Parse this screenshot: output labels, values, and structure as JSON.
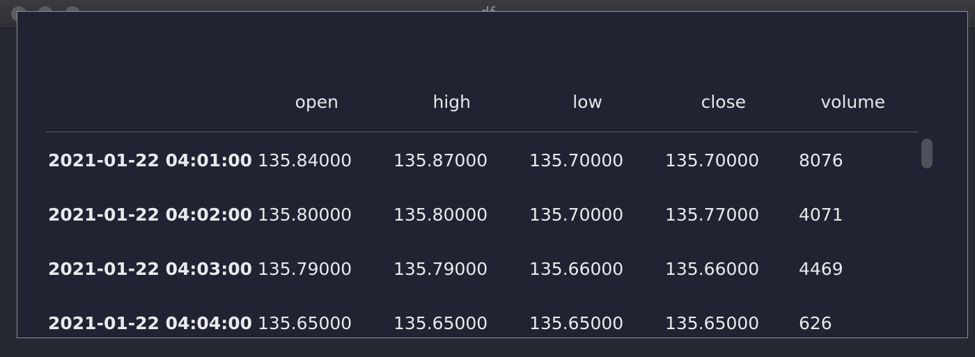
{
  "window": {
    "title": "df"
  },
  "table": {
    "columns": [
      "open",
      "high",
      "low",
      "close",
      "volume"
    ],
    "rows": [
      {
        "index": "2021-01-22 04:01:00",
        "open": "135.84000",
        "high": "135.87000",
        "low": "135.70000",
        "close": "135.70000",
        "volume": "8076"
      },
      {
        "index": "2021-01-22 04:02:00",
        "open": "135.80000",
        "high": "135.80000",
        "low": "135.70000",
        "close": "135.77000",
        "volume": "4071"
      },
      {
        "index": "2021-01-22 04:03:00",
        "open": "135.79000",
        "high": "135.79000",
        "low": "135.66000",
        "close": "135.66000",
        "volume": "4469"
      },
      {
        "index": "2021-01-22 04:04:00",
        "open": "135.65000",
        "high": "135.65000",
        "low": "135.65000",
        "close": "135.65000",
        "volume": "626"
      }
    ]
  }
}
